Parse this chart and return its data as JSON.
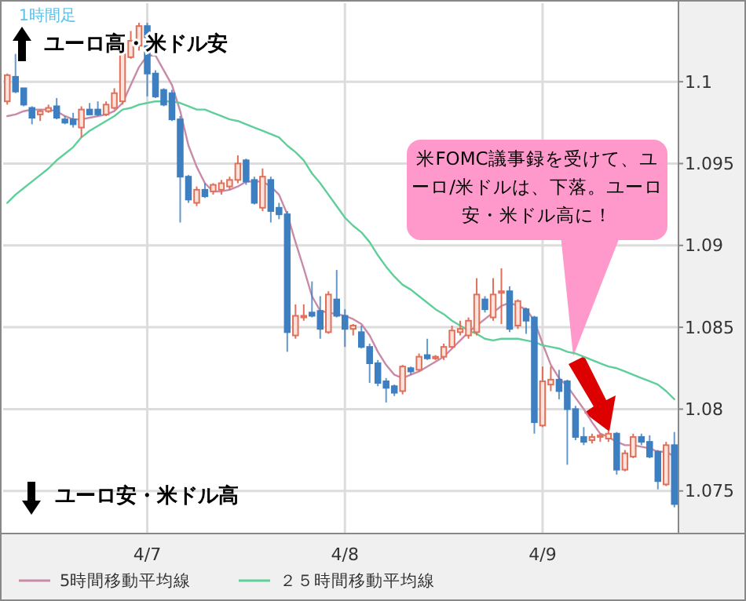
{
  "chart_data": {
    "type": "candlestick",
    "categories": [
      null,
      null,
      null,
      null,
      null,
      null,
      null,
      null,
      null,
      null,
      null,
      null,
      null,
      null,
      null,
      null,
      null,
      "4/7",
      null,
      null,
      null,
      null,
      null,
      null,
      null,
      null,
      null,
      null,
      null,
      null,
      null,
      null,
      null,
      null,
      null,
      null,
      null,
      null,
      null,
      null,
      null,
      "4/8",
      null,
      null,
      null,
      null,
      null,
      null,
      null,
      null,
      null,
      null,
      null,
      null,
      null,
      null,
      null,
      null,
      null,
      null,
      null,
      null,
      null,
      null,
      null,
      "4/9",
      null,
      null,
      null,
      null,
      null,
      null,
      null,
      null,
      null,
      null,
      null,
      null,
      null,
      null,
      null,
      null
    ],
    "ohlc": [
      [
        1.0988,
        1.1005,
        1.0986,
        1.1004
      ],
      [
        1.1003,
        1.1017,
        1.0993,
        1.0994
      ],
      [
        1.0996,
        1.0996,
        1.0985,
        1.0986
      ],
      [
        1.0984,
        1.0985,
        1.0974,
        1.0978
      ],
      [
        1.098,
        1.0983,
        1.0976,
        1.0982
      ],
      [
        1.0982,
        1.0986,
        1.0981,
        1.0984
      ],
      [
        1.0985,
        1.099,
        1.0977,
        1.0978
      ],
      [
        1.0977,
        1.0979,
        1.0974,
        1.0975
      ],
      [
        1.0977,
        1.0981,
        1.0972,
        1.0974
      ],
      [
        1.0972,
        1.0985,
        1.0966,
        1.0983
      ],
      [
        1.0983,
        1.0987,
        1.098,
        1.098
      ],
      [
        1.0983,
        1.0988,
        1.0979,
        1.098
      ],
      [
        1.098,
        1.0988,
        1.0979,
        1.0986
      ],
      [
        1.0984,
        1.0996,
        1.0983,
        1.0993
      ],
      [
        1.0988,
        1.102,
        1.0986,
        1.1017
      ],
      [
        1.1015,
        1.1031,
        1.1014,
        1.1025
      ],
      [
        1.1022,
        1.1036,
        1.1019,
        1.1034
      ],
      [
        1.1034,
        1.1036,
        1.0991,
        1.1005
      ],
      [
        1.1005,
        1.1007,
        1.099,
        1.0991
      ],
      [
        1.0995,
        1.0996,
        1.0985,
        1.0986
      ],
      [
        1.0993,
        1.0995,
        1.0976,
        1.0977
      ],
      [
        1.0977,
        1.0979,
        1.0914,
        1.0942
      ],
      [
        1.0942,
        1.0943,
        1.0926,
        1.0928
      ],
      [
        1.0926,
        1.0936,
        1.0924,
        1.0934
      ],
      [
        1.0934,
        1.0938,
        1.0929,
        1.093
      ],
      [
        1.0933,
        1.0938,
        1.0931,
        1.0937
      ],
      [
        1.0934,
        1.094,
        1.0931,
        1.0938
      ],
      [
        1.0936,
        1.0942,
        1.0934,
        1.094
      ],
      [
        1.094,
        1.0955,
        1.0938,
        1.095
      ],
      [
        1.0952,
        1.0953,
        1.0937,
        1.0939
      ],
      [
        1.094,
        1.0942,
        1.0925,
        1.0926
      ],
      [
        1.0923,
        1.0947,
        1.0921,
        1.0942
      ],
      [
        1.094,
        1.0942,
        1.0914,
        1.0921
      ],
      [
        1.0923,
        1.0926,
        1.0916,
        1.0919
      ],
      [
        1.0919,
        1.0921,
        1.0835,
        1.0847
      ],
      [
        1.0845,
        1.0864,
        1.0843,
        1.0857
      ],
      [
        1.0856,
        1.0864,
        1.0854,
        1.0857
      ],
      [
        1.0859,
        1.0878,
        1.0856,
        1.0857
      ],
      [
        1.086,
        1.0869,
        1.0843,
        1.0849
      ],
      [
        1.0847,
        1.0872,
        1.0846,
        1.087
      ],
      [
        1.0867,
        1.0885,
        1.0856,
        1.0857
      ],
      [
        1.0857,
        1.0861,
        1.0838,
        1.0849
      ],
      [
        1.0849,
        1.0852,
        1.0845,
        1.0851
      ],
      [
        1.0847,
        1.0851,
        1.0837,
        1.0838
      ],
      [
        1.0838,
        1.084,
        1.0816,
        1.0828
      ],
      [
        1.0828,
        1.083,
        1.0814,
        1.0816
      ],
      [
        1.0817,
        1.0819,
        1.0804,
        1.0813
      ],
      [
        1.0814,
        1.0815,
        1.0808,
        1.081
      ],
      [
        1.0811,
        1.0827,
        1.0809,
        1.0826
      ],
      [
        1.0825,
        1.0826,
        1.0821,
        1.0823
      ],
      [
        1.0824,
        1.0834,
        1.0823,
        1.0832
      ],
      [
        1.0833,
        1.0843,
        1.083,
        1.0831
      ],
      [
        1.0831,
        1.0833,
        1.083,
        1.0832
      ],
      [
        1.0832,
        1.084,
        1.083,
        1.0838
      ],
      [
        1.0838,
        1.0851,
        1.0837,
        1.0848
      ],
      [
        1.0847,
        1.0854,
        1.0845,
        1.0849
      ],
      [
        1.0845,
        1.0856,
        1.0843,
        1.0854
      ],
      [
        1.0847,
        1.088,
        1.0845,
        1.087
      ],
      [
        1.0867,
        1.0869,
        1.0859,
        1.0861
      ],
      [
        1.0856,
        1.088,
        1.0854,
        1.087
      ],
      [
        1.0871,
        1.0886,
        1.0852,
        1.0872
      ],
      [
        1.0872,
        1.0875,
        1.0847,
        1.0849
      ],
      [
        1.0851,
        1.0867,
        1.0849,
        1.0866
      ],
      [
        1.0861,
        1.0862,
        1.0846,
        1.0854
      ],
      [
        1.0856,
        1.0857,
        1.0785,
        1.0792
      ],
      [
        1.079,
        1.0826,
        1.0789,
        1.0817
      ],
      [
        1.0815,
        1.0826,
        1.0811,
        1.0818
      ],
      [
        1.0818,
        1.0824,
        1.0806,
        1.0811
      ],
      [
        1.0817,
        1.0818,
        1.0766,
        1.08
      ],
      [
        1.08,
        1.0802,
        1.0781,
        1.0783
      ],
      [
        1.0783,
        1.0789,
        1.0778,
        1.078
      ],
      [
        1.0781,
        1.0785,
        1.0779,
        1.0783
      ],
      [
        1.0783,
        1.0785,
        1.078,
        1.0784
      ],
      [
        1.0782,
        1.0787,
        1.078,
        1.0785
      ],
      [
        1.0785,
        1.0786,
        1.076,
        1.0763
      ],
      [
        1.0763,
        1.0775,
        1.0762,
        1.0773
      ],
      [
        1.0771,
        1.0785,
        1.077,
        1.0783
      ],
      [
        1.0783,
        1.0785,
        1.0778,
        1.078
      ],
      [
        1.078,
        1.0784,
        1.077,
        1.0771
      ],
      [
        1.0774,
        1.0775,
        1.0751,
        1.0756
      ],
      [
        1.0754,
        1.078,
        1.0753,
        1.0778
      ],
      [
        1.0778,
        1.0786,
        1.074,
        1.0742
      ]
    ],
    "series": [
      {
        "name": "5時間移動平均線",
        "type": "line",
        "color": "#c98aa8",
        "values": [
          1.0979,
          1.098,
          1.0982,
          1.0983,
          1.0983,
          1.0983,
          1.0982,
          1.0979,
          1.0977,
          1.0977,
          1.0978,
          1.0979,
          1.098,
          1.0982,
          1.0987,
          1.0998,
          1.1009,
          1.1016,
          1.1016,
          1.1007,
          1.0998,
          1.0982,
          1.0961,
          1.0948,
          1.0938,
          1.0933,
          1.0933,
          1.0934,
          1.0936,
          1.0939,
          1.0939,
          1.0939,
          1.0936,
          1.0931,
          1.0919,
          1.0902,
          1.0886,
          1.0869,
          1.086,
          1.0859,
          1.0858,
          1.0857,
          1.0855,
          1.0852,
          1.0845,
          1.0835,
          1.0827,
          1.0821,
          1.0819,
          1.0821,
          1.0823,
          1.0826,
          1.0829,
          1.0832,
          1.0837,
          1.0842,
          1.0847,
          1.0851,
          1.0855,
          1.0859,
          1.0863,
          1.0865,
          1.0863,
          1.0861,
          1.0854,
          1.084,
          1.0827,
          1.0819,
          1.0814,
          1.0807,
          1.08,
          1.0792,
          1.0785,
          1.0783,
          1.078,
          1.0778,
          1.0778,
          1.0777,
          1.0776,
          1.0774,
          1.0774,
          1.0771
        ]
      },
      {
        "name": "２５時間移動平均線",
        "type": "line",
        "color": "#5fcf9a",
        "values": [
          1.0926,
          1.0931,
          1.0935,
          1.0939,
          1.0943,
          1.0947,
          1.0952,
          1.0956,
          1.096,
          1.0966,
          1.097,
          1.0973,
          1.0976,
          1.0979,
          1.0983,
          1.0984,
          1.0986,
          1.0987,
          1.0988,
          1.0988,
          1.0988,
          1.0987,
          1.0985,
          1.0983,
          1.0983,
          1.0981,
          1.0979,
          1.0977,
          1.0976,
          1.0974,
          1.0972,
          1.097,
          1.0968,
          1.0966,
          1.0961,
          1.0957,
          1.0952,
          1.0944,
          1.0938,
          1.0931,
          1.0924,
          1.0917,
          1.0912,
          1.0908,
          1.0902,
          1.0894,
          1.0887,
          1.0881,
          1.0876,
          1.0873,
          1.0869,
          1.0865,
          1.0861,
          1.0858,
          1.0854,
          1.0851,
          1.0848,
          1.0846,
          1.0843,
          1.0842,
          1.0843,
          1.0843,
          1.0843,
          1.0842,
          1.0841,
          1.0839,
          1.0838,
          1.0837,
          1.0835,
          1.0834,
          1.0832,
          1.083,
          1.0828,
          1.0826,
          1.0825,
          1.0823,
          1.0821,
          1.0819,
          1.0817,
          1.0815,
          1.0811,
          1.0806
        ]
      }
    ],
    "ylim": [
      1.0724,
      1.1048
    ],
    "yticks": [
      1.075,
      1.08,
      1.085,
      1.09,
      1.095,
      1.1
    ],
    "grid": true,
    "legend": "bottom",
    "annotations": [
      "1時間足",
      "ユーロ高・米ドル安",
      "ユーロ安・米ドル高",
      "米FOMC議事録を受けて、ユーロ/米ドルは、下落。ユーロ安・米ドル高に！"
    ]
  }
}
